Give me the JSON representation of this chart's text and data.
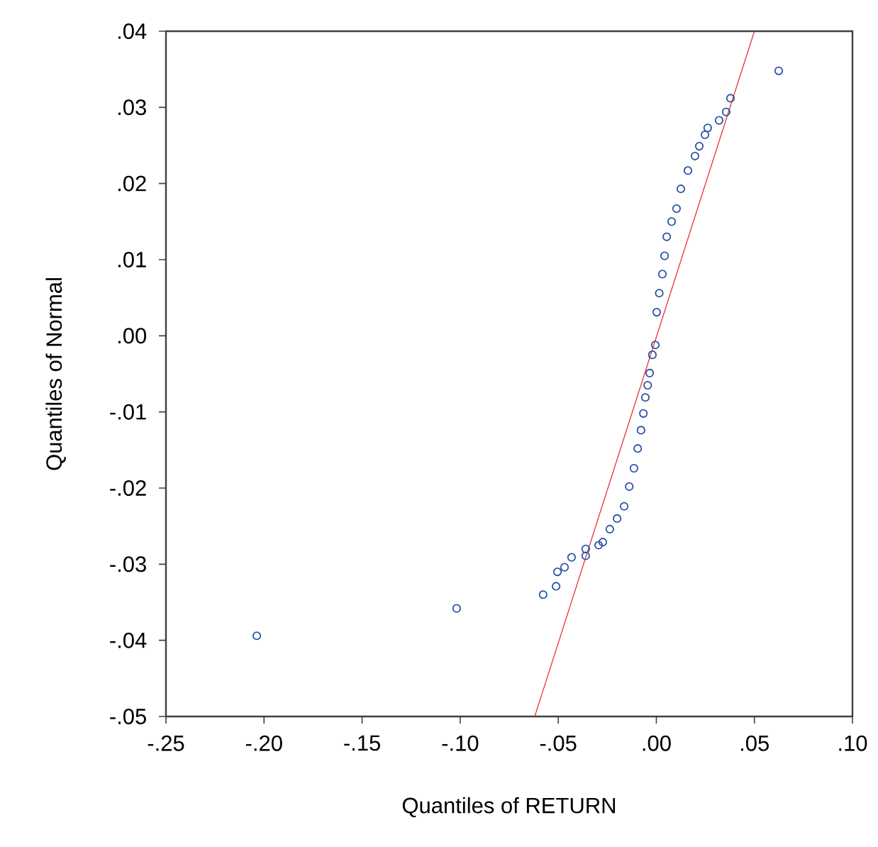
{
  "chart_data": {
    "type": "scatter",
    "xlabel": "Quantiles of RETURN",
    "ylabel": "Quantiles of Normal",
    "xlim": [
      -0.25,
      0.1
    ],
    "ylim": [
      -0.05,
      0.04
    ],
    "xticks": [
      {
        "value": -0.25,
        "label": "-.25"
      },
      {
        "value": -0.2,
        "label": "-.20"
      },
      {
        "value": -0.15,
        "label": "-.15"
      },
      {
        "value": -0.1,
        "label": "-.10"
      },
      {
        "value": -0.05,
        "label": "-.05"
      },
      {
        "value": 0.0,
        "label": ".00"
      },
      {
        "value": 0.05,
        "label": ".05"
      },
      {
        "value": 0.1,
        "label": ".10"
      }
    ],
    "yticks": [
      {
        "value": -0.05,
        "label": "-.05"
      },
      {
        "value": -0.04,
        "label": "-.04"
      },
      {
        "value": -0.03,
        "label": "-.03"
      },
      {
        "value": -0.02,
        "label": "-.02"
      },
      {
        "value": -0.01,
        "label": "-.01"
      },
      {
        "value": 0.0,
        "label": ".00"
      },
      {
        "value": 0.01,
        "label": ".01"
      },
      {
        "value": 0.02,
        "label": ".02"
      },
      {
        "value": 0.03,
        "label": ".03"
      },
      {
        "value": 0.04,
        "label": ".04"
      }
    ],
    "series": [
      {
        "marker": "circle",
        "color": "#2b54a5",
        "x": [
          -0.2037,
          -0.1018,
          -0.0577,
          -0.0511,
          -0.0504,
          -0.0468,
          -0.0432,
          -0.036,
          -0.036,
          -0.0294,
          -0.0273,
          -0.0237,
          -0.02,
          -0.0164,
          -0.0138,
          -0.0114,
          -0.0095,
          -0.0078,
          -0.0066,
          -0.0056,
          -0.0044,
          -0.0034,
          -0.002,
          -0.0005,
          0.0002,
          0.0015,
          0.0031,
          0.0042,
          0.0053,
          0.0078,
          0.0103,
          0.0125,
          0.0161,
          0.0197,
          0.0219,
          0.0248,
          0.0262,
          0.032,
          0.0356,
          0.0378,
          0.0624
        ],
        "values": [
          -0.0394,
          -0.0358,
          -0.034,
          -0.0329,
          -0.031,
          -0.0304,
          -0.0291,
          -0.0289,
          -0.028,
          -0.0275,
          -0.0271,
          -0.0254,
          -0.024,
          -0.0224,
          -0.0198,
          -0.0174,
          -0.0148,
          -0.0124,
          -0.0102,
          -0.0081,
          -0.0065,
          -0.0049,
          -0.0025,
          -0.0012,
          0.0031,
          0.0056,
          0.0081,
          0.0105,
          0.013,
          0.015,
          0.0167,
          0.0193,
          0.0217,
          0.0236,
          0.0249,
          0.0264,
          0.0273,
          0.0283,
          0.0294,
          0.0312,
          0.0348
        ]
      },
      {
        "type": "line",
        "marker": "none",
        "line_style": "solid",
        "color": "#e8202a",
        "x": [
          -0.062,
          0.05
        ],
        "values": [
          -0.05,
          0.04
        ]
      }
    ]
  }
}
